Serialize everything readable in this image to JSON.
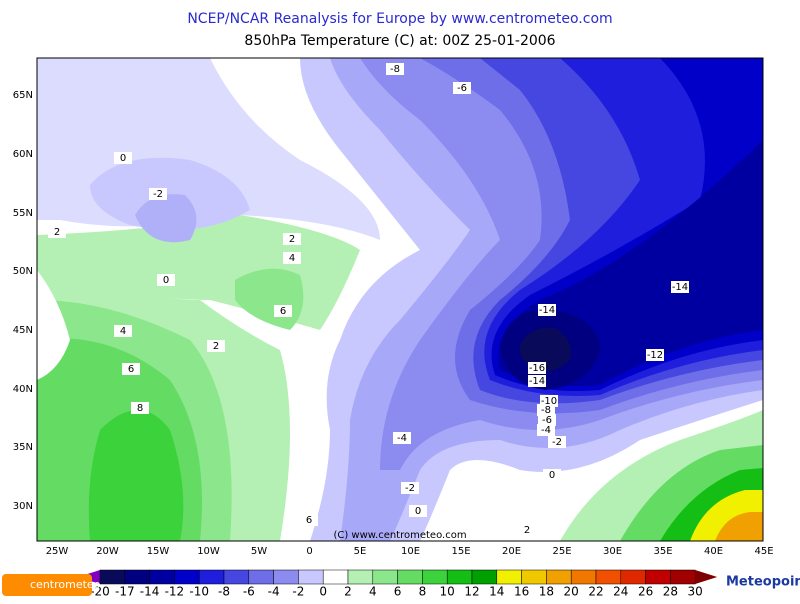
{
  "title": "NCEP/NCAR Reanalysis for Europe by www.centrometeo.com",
  "subtitle": "850hPa Temperature (C) at: 00Z 25-01-2006",
  "lat_labels": [
    "65N",
    "60N",
    "55N",
    "50N",
    "45N",
    "40N",
    "35N",
    "30N"
  ],
  "lon_labels": [
    "25W",
    "20W",
    "15W",
    "10W",
    "5W",
    "0",
    "5E",
    "10E",
    "15E",
    "20E",
    "25E",
    "30E",
    "35E",
    "40E",
    "45E"
  ],
  "contour_labels": [
    -8,
    -6,
    0,
    -2,
    2,
    2,
    4,
    0,
    -14,
    6,
    -14,
    4,
    2,
    -12,
    6,
    -16,
    -14,
    8,
    -10,
    -8,
    -6,
    -4,
    -2,
    -4,
    0,
    -2,
    0,
    6,
    2
  ],
  "watermark": "(C) www.centrometeo.com",
  "colorbar": {
    "levels": [
      -20,
      -17,
      -14,
      -12,
      -10,
      -8,
      -6,
      -4,
      -2,
      0,
      2,
      4,
      6,
      8,
      10,
      12,
      14,
      16,
      18,
      20,
      22,
      24,
      26,
      28,
      30
    ],
    "colors": [
      "#0a0a5a",
      "#000080",
      "#0000a0",
      "#0000c8",
      "#1e1edc",
      "#4646e0",
      "#6e6ee8",
      "#8c8cf0",
      "#c8c8ff",
      "#ffffff",
      "#b4f0b4",
      "#8ce68c",
      "#64dc64",
      "#3cd23c",
      "#14be14",
      "#00a000",
      "#f0f000",
      "#f0c800",
      "#f0a000",
      "#f07800",
      "#f05000",
      "#e02800",
      "#c00000",
      "#a00000"
    ],
    "low_color": "#8000c0",
    "high_color": "#800000"
  },
  "logo_left": "centrometeo",
  "logo_right": "Meteopoint"
}
